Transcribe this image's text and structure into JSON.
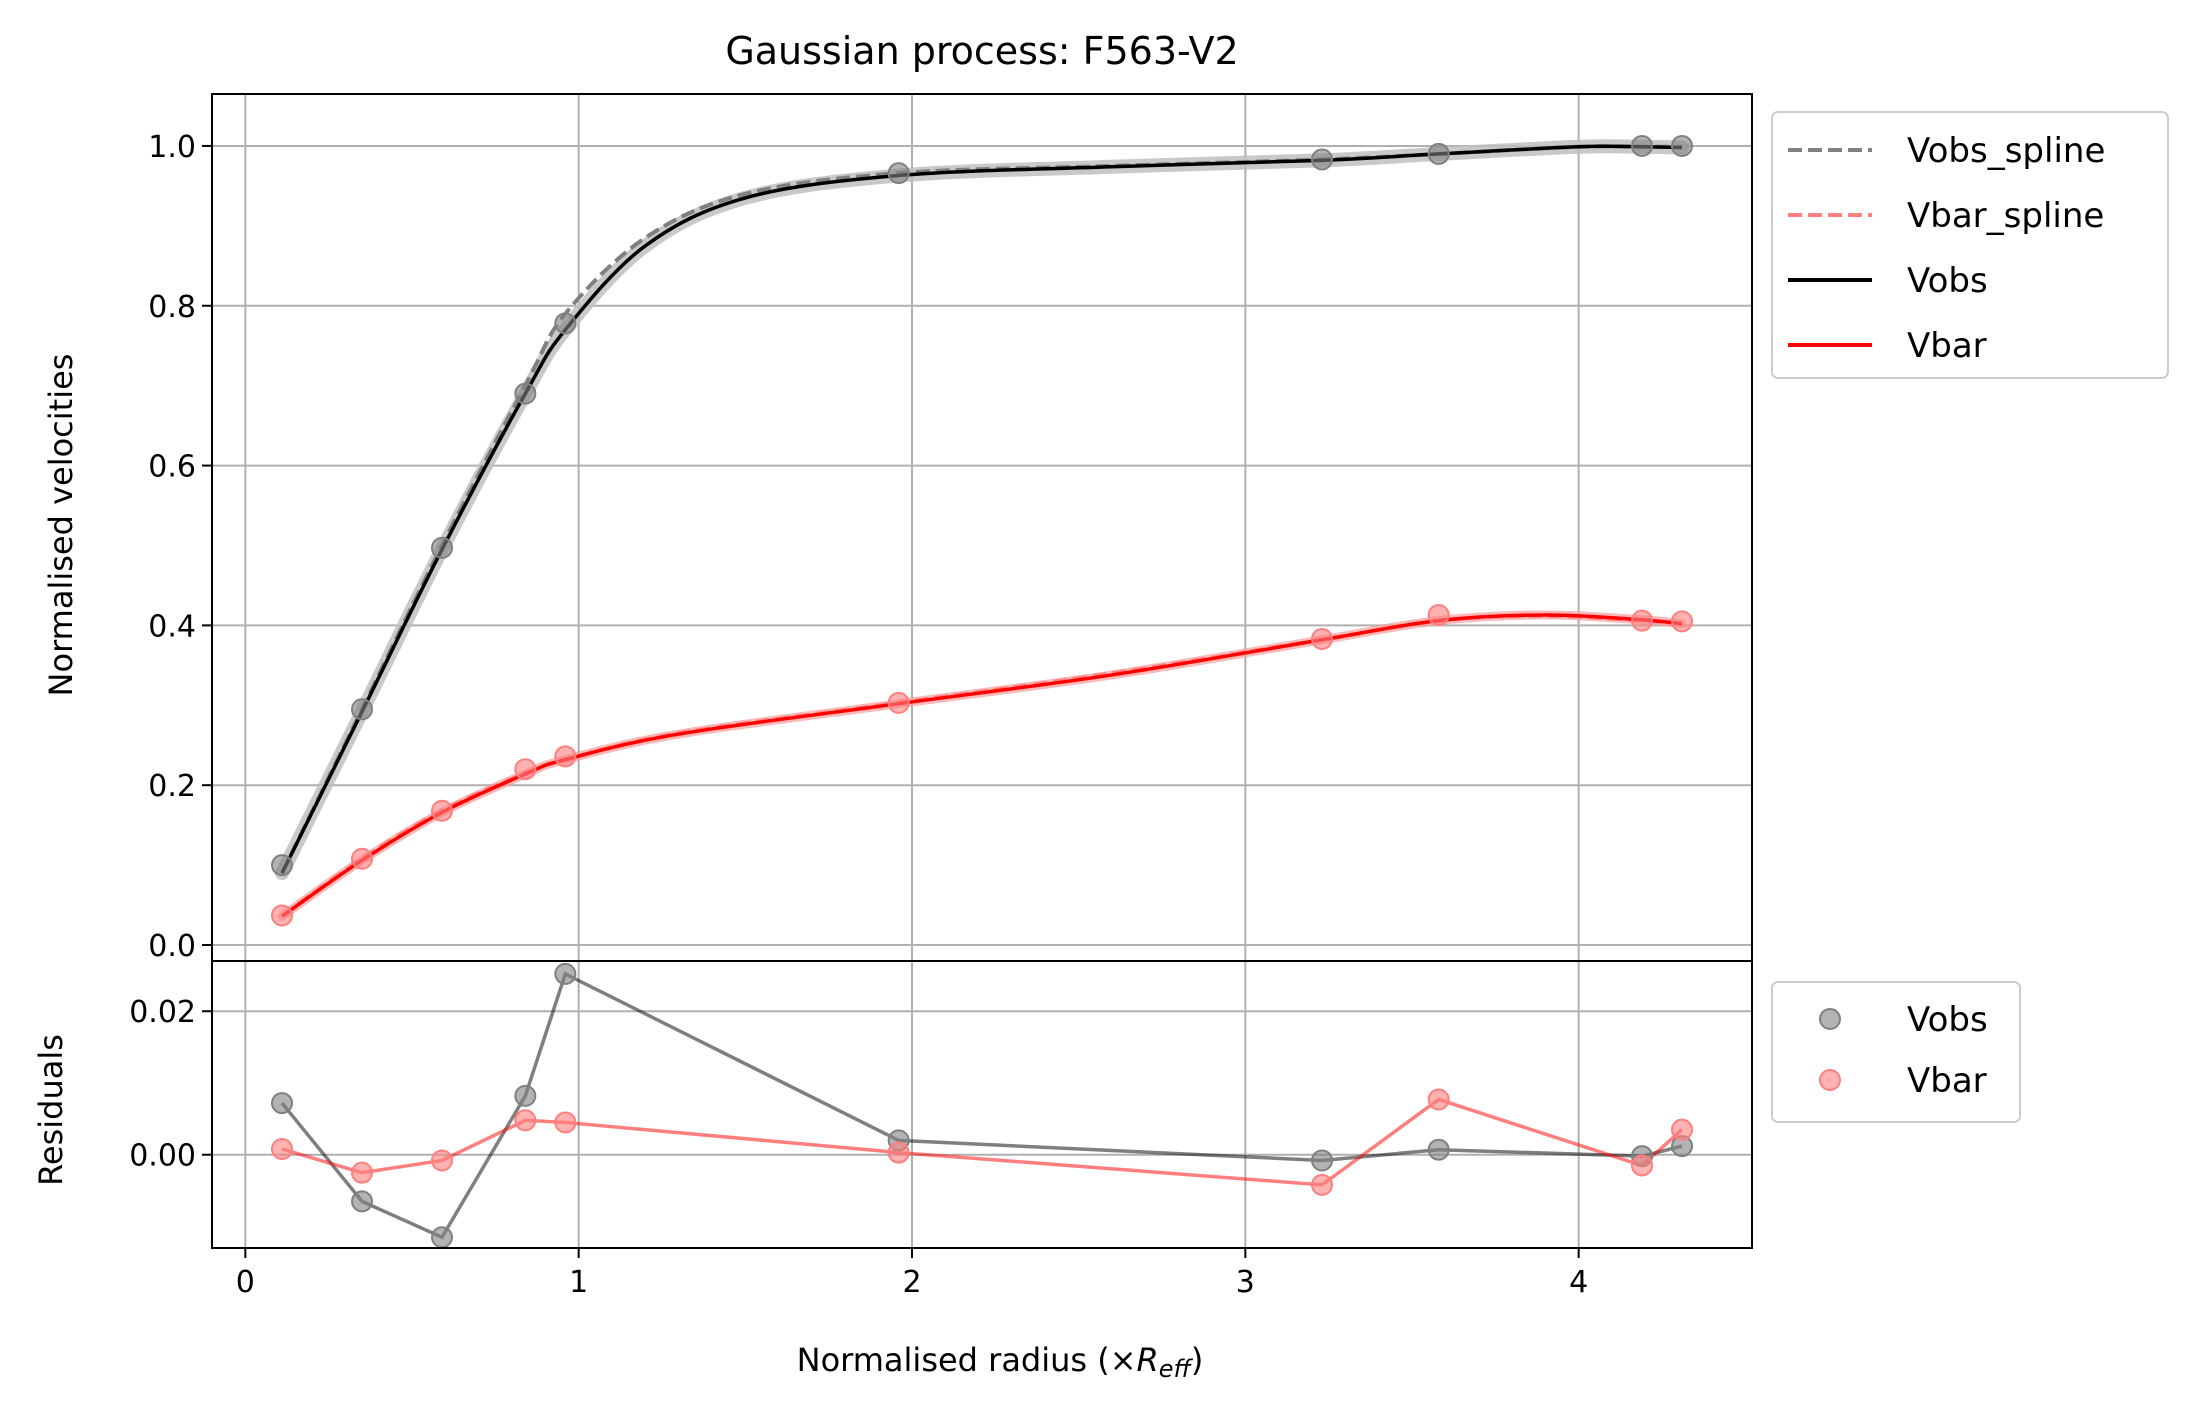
{
  "chart_data": [
    {
      "panel": "main",
      "type": "line",
      "title": "Gaussian process: F563-V2",
      "ylabel": "Normalised velocities",
      "xlim": [
        -0.1,
        4.52
      ],
      "ylim": [
        -0.02,
        1.065
      ],
      "x_ticks": [
        0,
        1,
        2,
        3,
        4
      ],
      "y_ticks": [
        0.0,
        0.2,
        0.4,
        0.6,
        0.8,
        1.0
      ],
      "y_tick_labels": [
        "0.0",
        "0.2",
        "0.4",
        "0.6",
        "0.8",
        "1.0"
      ],
      "grid": true,
      "legend_position": "outside-right-top",
      "series": [
        {
          "name": "Vobs_spline",
          "style": "dashed",
          "color": "#808080",
          "x": [
            0.11,
            0.35,
            0.59,
            0.84,
            0.96,
            1.2,
            1.5,
            1.96,
            2.6,
            3.23,
            3.58,
            4.0,
            4.19,
            4.31
          ],
          "y": [
            0.09,
            0.295,
            0.5,
            0.7,
            0.79,
            0.885,
            0.94,
            0.966,
            0.975,
            0.983,
            0.99,
            0.999,
            0.999,
            0.999
          ]
        },
        {
          "name": "Vbar_spline",
          "style": "dashed",
          "color": "#ff7f7f",
          "x": [
            0.11,
            0.35,
            0.59,
            0.84,
            0.96,
            1.3,
            1.96,
            2.6,
            3.23,
            3.58,
            3.9,
            4.19,
            4.31
          ],
          "y": [
            0.036,
            0.108,
            0.168,
            0.215,
            0.232,
            0.265,
            0.303,
            0.34,
            0.382,
            0.406,
            0.412,
            0.406,
            0.402
          ]
        },
        {
          "name": "Vobs",
          "style": "solid",
          "color": "#000000",
          "x": [
            0.11,
            0.35,
            0.59,
            0.84,
            0.96,
            1.2,
            1.5,
            1.96,
            2.6,
            3.23,
            3.58,
            4.0,
            4.19,
            4.31
          ],
          "y": [
            0.09,
            0.292,
            0.495,
            0.69,
            0.77,
            0.875,
            0.935,
            0.963,
            0.974,
            0.982,
            0.99,
            0.999,
            0.999,
            0.998
          ]
        },
        {
          "name": "Vbar",
          "style": "solid",
          "color": "#ff0000",
          "x": [
            0.11,
            0.35,
            0.59,
            0.84,
            0.96,
            1.3,
            1.96,
            2.6,
            3.23,
            3.58,
            3.9,
            4.19,
            4.31
          ],
          "y": [
            0.036,
            0.106,
            0.166,
            0.214,
            0.232,
            0.264,
            0.302,
            0.338,
            0.382,
            0.406,
            0.413,
            0.407,
            0.402
          ]
        }
      ],
      "points": [
        {
          "name": "Vobs",
          "color": "#808080",
          "x": [
            0.11,
            0.35,
            0.59,
            0.84,
            0.96,
            1.96,
            3.23,
            3.58,
            4.19,
            4.31
          ],
          "y": [
            0.1,
            0.295,
            0.497,
            0.69,
            0.778,
            0.966,
            0.983,
            0.99,
            1.0,
            1.0
          ]
        },
        {
          "name": "Vbar",
          "color": "#ff7f7f",
          "x": [
            0.11,
            0.35,
            0.59,
            0.84,
            0.96,
            1.96,
            3.23,
            3.58,
            4.19,
            4.31
          ],
          "y": [
            0.037,
            0.108,
            0.168,
            0.22,
            0.236,
            0.303,
            0.383,
            0.413,
            0.406,
            0.405
          ]
        }
      ]
    },
    {
      "panel": "residuals",
      "type": "scatter",
      "xlabel": "Normalised radius (×",
      "xlabel_symbol": "R",
      "xlabel_subscript": "eff",
      "xlabel_suffix": ")",
      "ylabel": "Residuals",
      "xlim": [
        -0.1,
        4.52
      ],
      "ylim": [
        -0.013,
        0.027
      ],
      "x_ticks": [
        0,
        1,
        2,
        3,
        4
      ],
      "x_tick_labels": [
        "0",
        "1",
        "2",
        "3",
        "4"
      ],
      "y_ticks": [
        0.0,
        0.02
      ],
      "y_tick_labels": [
        "0.00",
        "0.02"
      ],
      "grid": true,
      "legend_position": "outside-right-top",
      "series": [
        {
          "name": "Vobs",
          "color": "#808080",
          "x": [
            0.11,
            0.35,
            0.59,
            0.84,
            0.96,
            1.96,
            3.23,
            3.58,
            4.19,
            4.31
          ],
          "y": [
            0.0072,
            -0.0065,
            -0.0115,
            0.0082,
            0.0252,
            0.002,
            -0.0008,
            0.0007,
            -0.0002,
            0.0012
          ]
        },
        {
          "name": "Vbar",
          "color": "#ff7f7f",
          "x": [
            0.11,
            0.35,
            0.59,
            0.84,
            0.96,
            1.96,
            3.23,
            3.58,
            4.19,
            4.31
          ],
          "y": [
            0.0008,
            -0.0025,
            -0.0008,
            0.0048,
            0.0045,
            0.0003,
            -0.0042,
            0.0077,
            -0.0015,
            0.0035
          ]
        }
      ]
    }
  ]
}
